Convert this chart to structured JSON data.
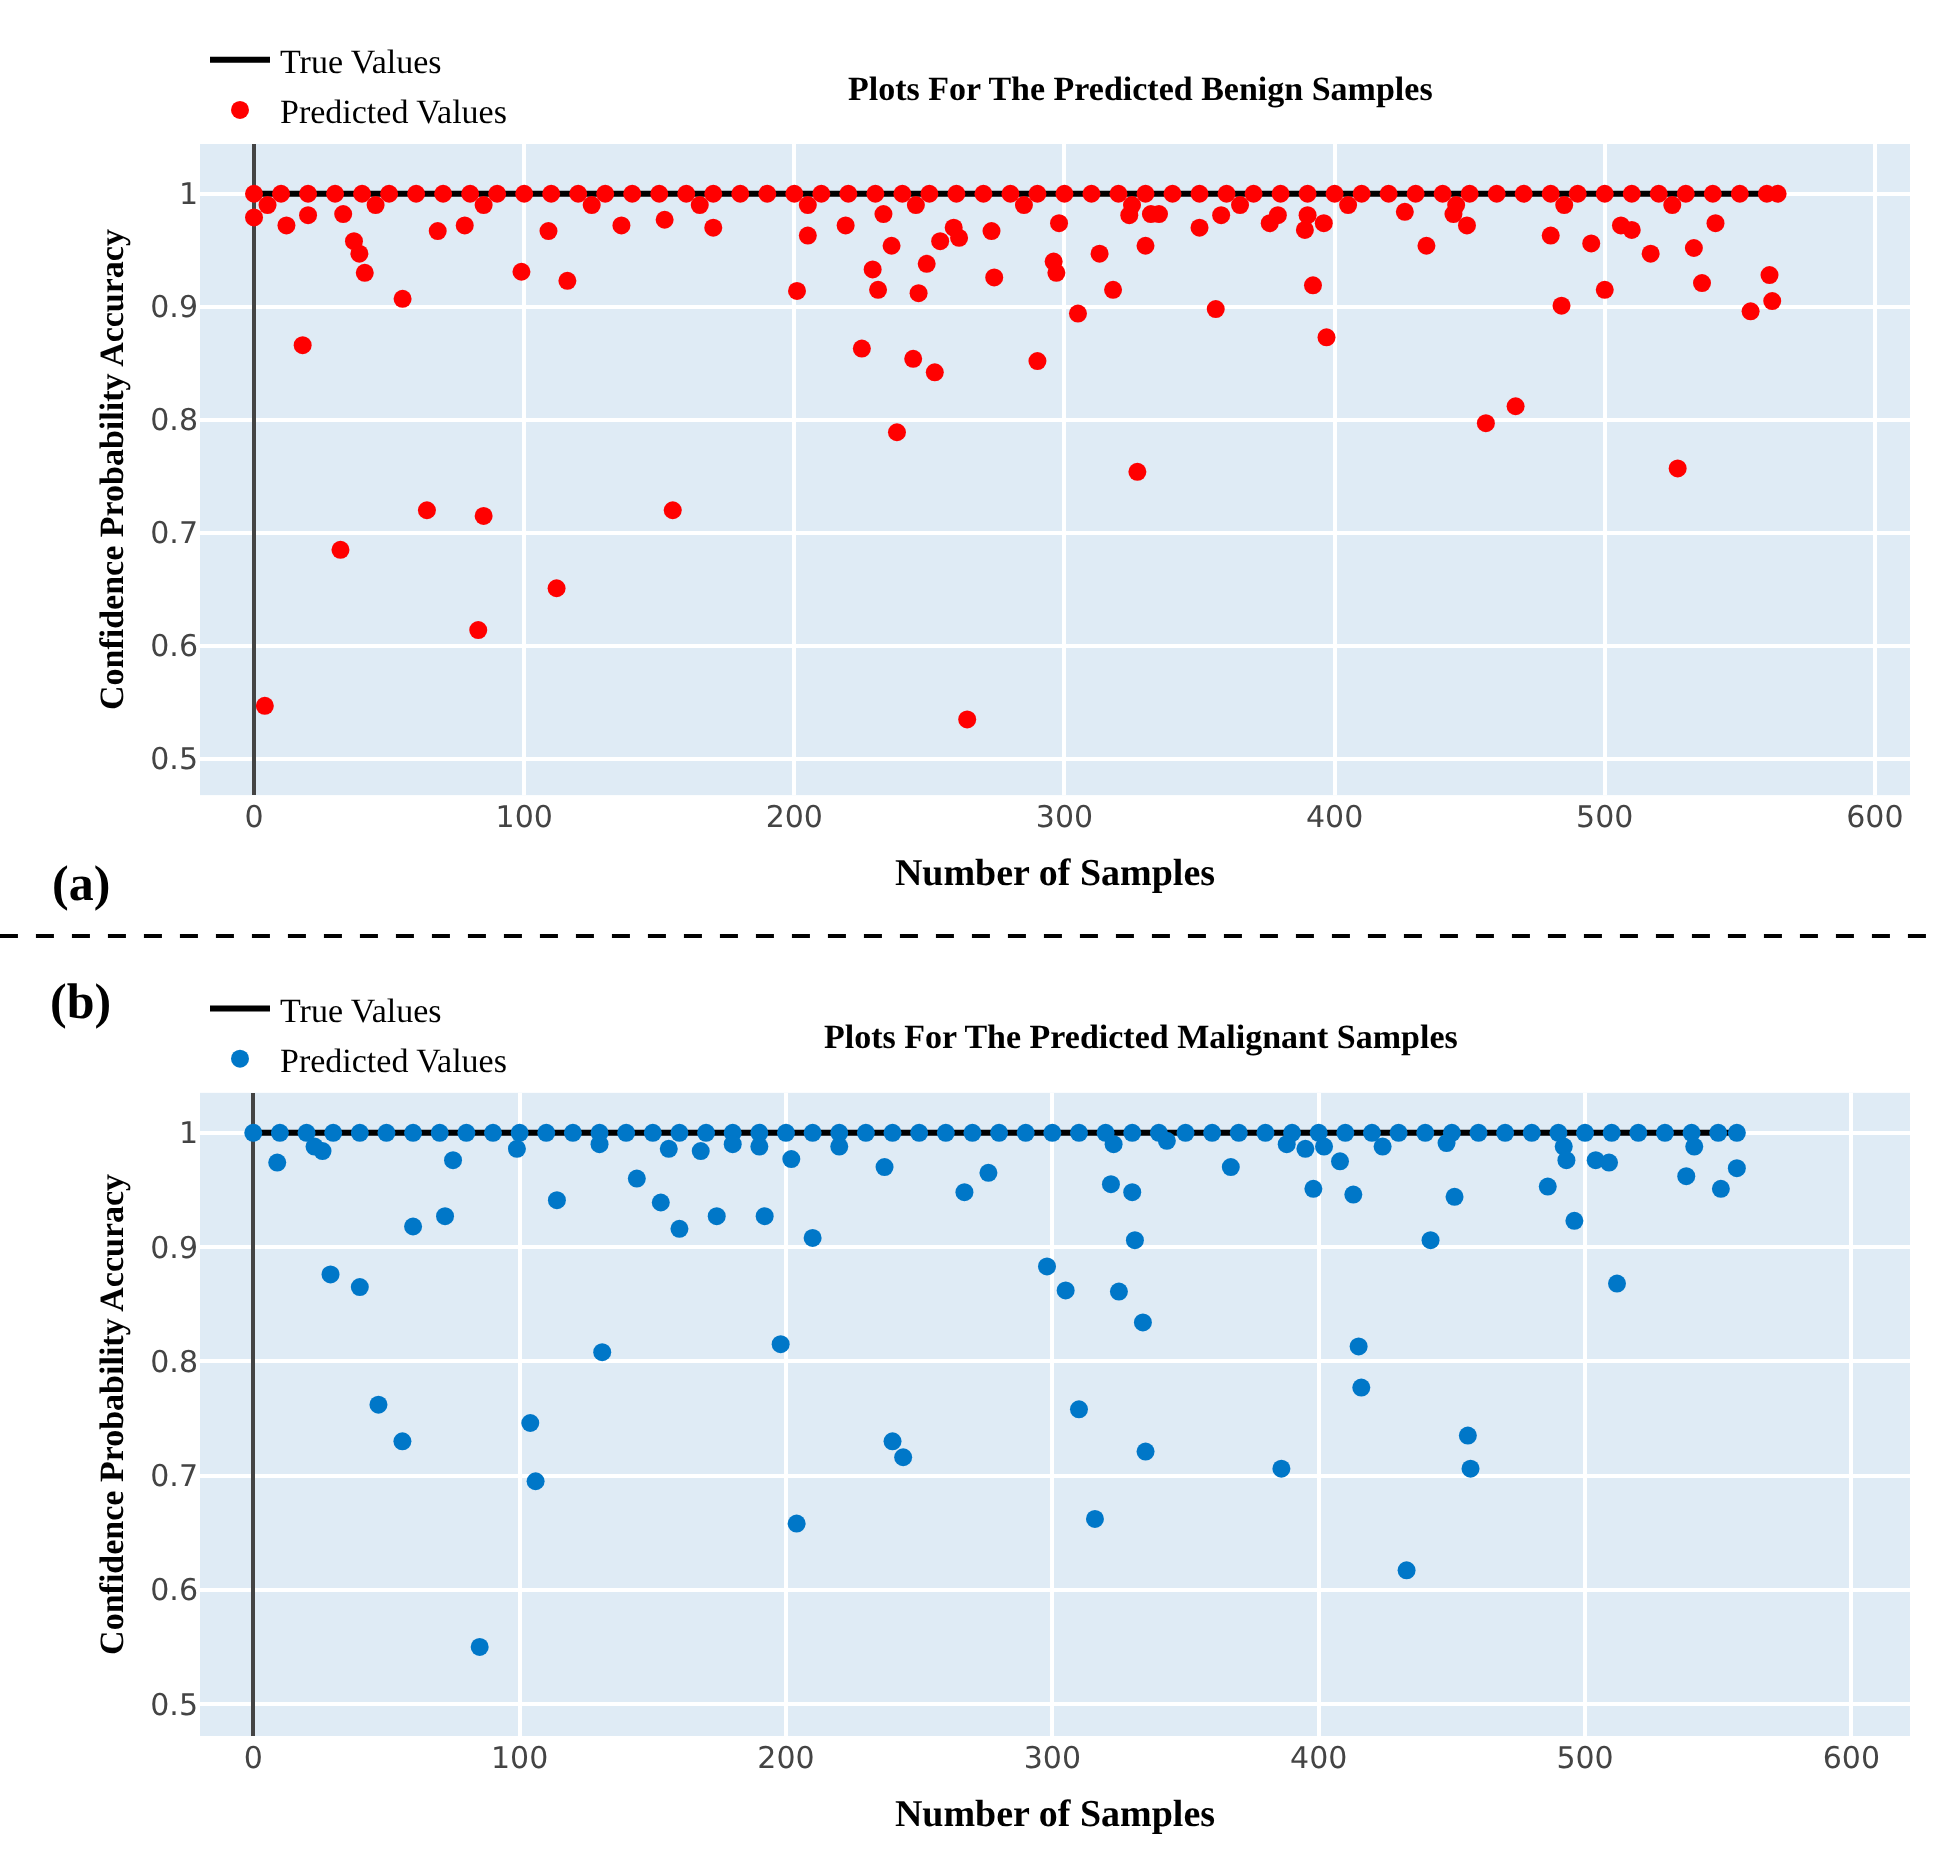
{
  "chart_data": [
    {
      "type": "scatter",
      "title": "Plots For The Predicted Benign Samples",
      "xlabel": "Number of Samples",
      "ylabel": "Confidence Probability Accuracy",
      "annotations": [
        "(a)"
      ],
      "xlim": [
        -20,
        613
      ],
      "xticks": [
        0,
        100,
        200,
        300,
        400,
        500,
        600
      ],
      "ylim": [
        0.468,
        1.044
      ],
      "yticks": [
        0.5,
        0.6,
        0.7,
        0.8,
        0.9,
        1
      ],
      "grid": true,
      "legend": "top left",
      "series": [
        {
          "name": "True Values",
          "type": "line",
          "color": "#000000",
          "line_style": "solid",
          "marker": "none",
          "x": [
            0,
            564
          ],
          "values": [
            1,
            1
          ]
        },
        {
          "name": "Predicted Values",
          "color": "#ff0000",
          "marker": "circle",
          "x": [
            0,
            10,
            20,
            30,
            40,
            50,
            60,
            70,
            80,
            90,
            100,
            110,
            120,
            130,
            140,
            150,
            160,
            170,
            180,
            190,
            200,
            210,
            220,
            230,
            240,
            250,
            260,
            270,
            280,
            290,
            300,
            310,
            320,
            330,
            340,
            350,
            360,
            370,
            380,
            390,
            400,
            410,
            420,
            430,
            440,
            450,
            460,
            470,
            480,
            490,
            500,
            510,
            520,
            530,
            540,
            550,
            560,
            564,
            5,
            45,
            85,
            125,
            165,
            205,
            245,
            285,
            325,
            365,
            405,
            445,
            485,
            525,
            4,
            0,
            12,
            20,
            33,
            37,
            39,
            41,
            18,
            55,
            32,
            64,
            68,
            78,
            83,
            85,
            99,
            109,
            116,
            112,
            136,
            152,
            155,
            170,
            201,
            205,
            219,
            225,
            229,
            231,
            233,
            236,
            238,
            244,
            246,
            249,
            252,
            254,
            259,
            261,
            264,
            273,
            274,
            290,
            296,
            297,
            298,
            305,
            313,
            318,
            324,
            327,
            330,
            332,
            335,
            350,
            356,
            358,
            376,
            379,
            389,
            390,
            392,
            396,
            397,
            426,
            434,
            444,
            449,
            456,
            467,
            480,
            484,
            495,
            500,
            506,
            510,
            517,
            527,
            533,
            536,
            541,
            554,
            561,
            562
          ],
          "values": [
            1,
            1,
            1,
            1,
            1,
            1,
            1,
            1,
            1,
            1,
            1,
            1,
            1,
            1,
            1,
            1,
            1,
            1,
            1,
            1,
            1,
            1,
            1,
            1,
            1,
            1,
            1,
            1,
            1,
            1,
            1,
            1,
            1,
            1,
            1,
            1,
            1,
            1,
            1,
            1,
            1,
            1,
            1,
            1,
            1,
            1,
            1,
            1,
            1,
            1,
            1,
            1,
            1,
            1,
            1,
            1,
            1,
            1,
            0.99,
            0.99,
            0.99,
            0.99,
            0.99,
            0.99,
            0.99,
            0.99,
            0.99,
            0.99,
            0.99,
            0.99,
            0.99,
            0.99,
            0.547,
            0.979,
            0.972,
            0.981,
            0.982,
            0.958,
            0.947,
            0.93,
            0.866,
            0.907,
            0.685,
            0.72,
            0.967,
            0.972,
            0.614,
            0.715,
            0.931,
            0.967,
            0.923,
            0.651,
            0.972,
            0.977,
            0.72,
            0.97,
            0.914,
            0.963,
            0.972,
            0.863,
            0.933,
            0.915,
            0.982,
            0.954,
            0.789,
            0.854,
            0.912,
            0.938,
            0.842,
            0.958,
            0.97,
            0.961,
            0.535,
            0.967,
            0.926,
            0.852,
            0.94,
            0.93,
            0.974,
            0.894,
            0.947,
            0.915,
            0.981,
            0.754,
            0.954,
            0.982,
            0.982,
            0.97,
            0.898,
            0.981,
            0.974,
            0.981,
            0.968,
            0.981,
            0.919,
            0.974,
            0.873,
            0.984,
            0.954,
            0.982,
            0.972,
            0.797,
            0.812,
            0.963,
            0.901,
            0.956,
            0.915,
            0.972,
            0.968,
            0.947,
            0.757,
            0.952,
            0.921,
            0.974,
            0.896,
            0.928,
            0.905
          ]
        }
      ]
    },
    {
      "type": "scatter",
      "title": "Plots For The Predicted Malignant Samples",
      "xlabel": "Number of Samples",
      "ylabel": "Confidence Probability Accuracy",
      "annotations": [
        "(b)"
      ],
      "xlim": [
        -20,
        622
      ],
      "xticks": [
        0,
        100,
        200,
        300,
        400,
        500,
        600
      ],
      "ylim": [
        0.472,
        1.035
      ],
      "yticks": [
        0.5,
        0.6,
        0.7,
        0.8,
        0.9,
        1
      ],
      "grid": true,
      "legend": "top left",
      "series": [
        {
          "name": "True Values",
          "type": "line",
          "color": "#000000",
          "line_style": "solid",
          "marker": "none",
          "x": [
            0,
            557
          ],
          "values": [
            1,
            1
          ]
        },
        {
          "name": "Predicted Values",
          "color": "#0077c8",
          "marker": "circle",
          "x": [
            0,
            10,
            20,
            30,
            40,
            50,
            60,
            70,
            80,
            90,
            100,
            110,
            120,
            130,
            140,
            150,
            160,
            170,
            180,
            190,
            200,
            210,
            220,
            230,
            240,
            250,
            260,
            270,
            280,
            290,
            300,
            310,
            320,
            330,
            340,
            350,
            360,
            370,
            380,
            390,
            400,
            410,
            420,
            430,
            440,
            450,
            460,
            470,
            480,
            490,
            500,
            510,
            520,
            530,
            540,
            550,
            557,
            9,
            26,
            23,
            29,
            40,
            47,
            56,
            60,
            72,
            75,
            85,
            99,
            104,
            106,
            114,
            130,
            131,
            144,
            153,
            156,
            160,
            168,
            174,
            180,
            190,
            192,
            198,
            202,
            204,
            210,
            220,
            237,
            240,
            244,
            267,
            276,
            298,
            305,
            310,
            316,
            322,
            323,
            325,
            330,
            331,
            334,
            335,
            343,
            367,
            386,
            388,
            395,
            398,
            402,
            408,
            413,
            415,
            416,
            424,
            433,
            442,
            448,
            451,
            456,
            457,
            486,
            492,
            493,
            496,
            504,
            509,
            512,
            538,
            541,
            551,
            557
          ],
          "values": [
            1,
            1,
            1,
            1,
            1,
            1,
            1,
            1,
            1,
            1,
            1,
            1,
            1,
            1,
            1,
            1,
            1,
            1,
            1,
            1,
            1,
            1,
            1,
            1,
            1,
            1,
            1,
            1,
            1,
            1,
            1,
            1,
            1,
            1,
            1,
            1,
            1,
            1,
            1,
            1,
            1,
            1,
            1,
            1,
            1,
            1,
            1,
            1,
            1,
            1,
            1,
            1,
            1,
            1,
            1,
            1,
            1,
            0.974,
            0.984,
            0.988,
            0.876,
            0.865,
            0.762,
            0.73,
            0.918,
            0.927,
            0.976,
            0.55,
            0.986,
            0.746,
            0.695,
            0.941,
            0.99,
            0.808,
            0.96,
            0.939,
            0.986,
            0.916,
            0.984,
            0.927,
            0.99,
            0.988,
            0.927,
            0.815,
            0.977,
            0.658,
            0.908,
            0.988,
            0.97,
            0.73,
            0.716,
            0.948,
            0.965,
            0.883,
            0.862,
            0.758,
            0.662,
            0.955,
            0.99,
            0.861,
            0.948,
            0.906,
            0.834,
            0.721,
            0.993,
            0.97,
            0.706,
            0.99,
            0.986,
            0.951,
            0.988,
            0.975,
            0.946,
            0.813,
            0.777,
            0.988,
            0.617,
            0.906,
            0.991,
            0.944,
            0.735,
            0.706,
            0.953,
            0.988,
            0.976,
            0.923,
            0.976,
            0.974,
            0.868,
            0.962,
            0.988,
            0.951,
            0.969
          ]
        }
      ]
    }
  ]
}
